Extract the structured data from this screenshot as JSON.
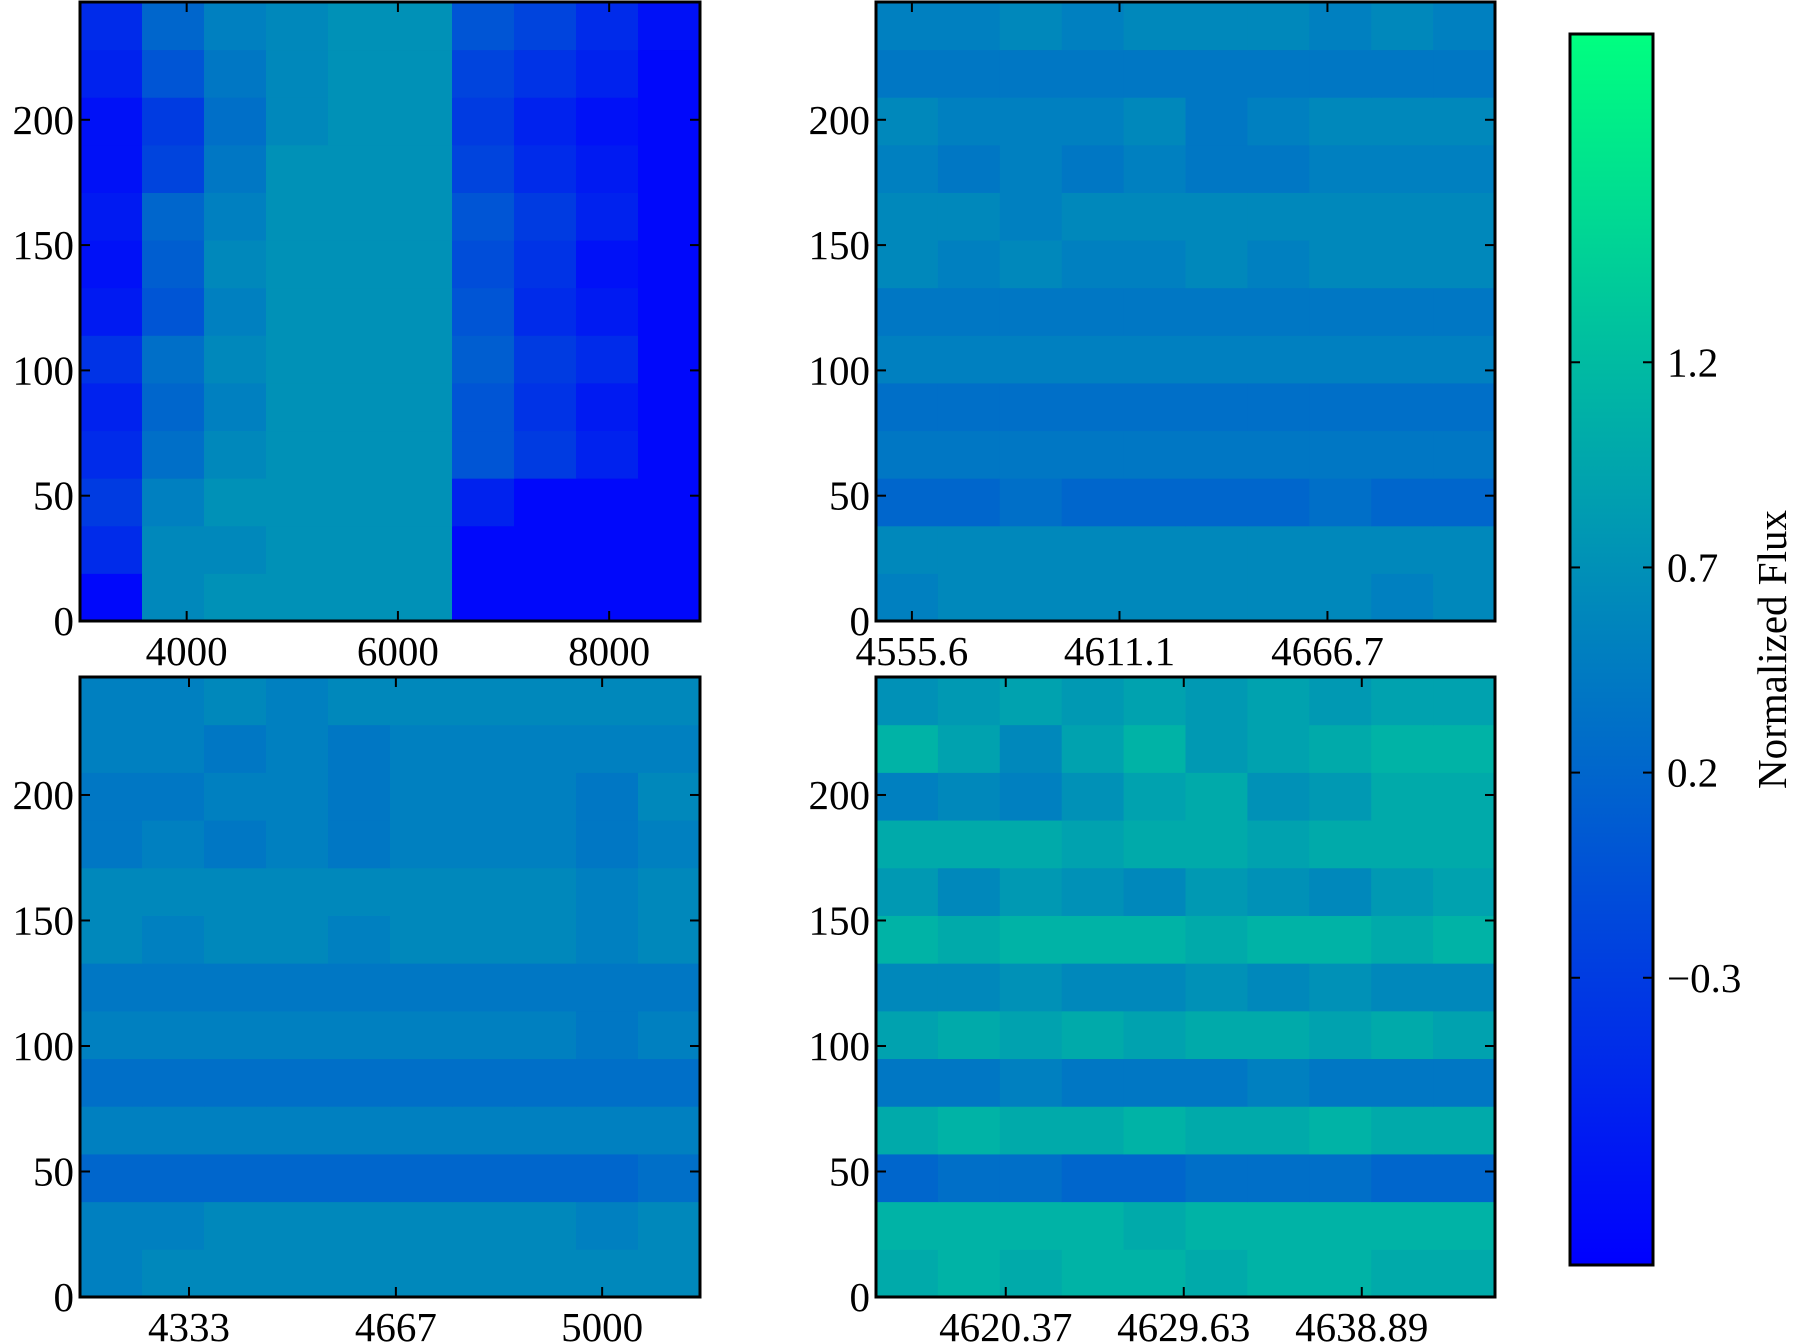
{
  "chart_data": [
    {
      "type": "heatmap",
      "xlim": [
        2990,
        8860
      ],
      "ylim": [
        0,
        247
      ],
      "xticks": [
        4000,
        6000,
        8000
      ],
      "yticks": [
        0,
        50,
        100,
        150,
        200
      ],
      "values": [
        [
          -0.9,
          0.6,
          0.7,
          0.7,
          0.7,
          0.7,
          -0.9,
          -0.9,
          -0.9,
          -0.9
        ],
        [
          -0.5,
          0.6,
          0.6,
          0.7,
          0.7,
          0.7,
          -0.9,
          -0.9,
          -0.9,
          -0.9
        ],
        [
          -0.3,
          0.5,
          0.7,
          0.7,
          0.7,
          0.7,
          -0.6,
          -0.9,
          -0.9,
          -0.9
        ],
        [
          -0.5,
          0.3,
          0.6,
          0.7,
          0.7,
          0.7,
          0.0,
          -0.3,
          -0.6,
          -0.9
        ],
        [
          -0.6,
          0.2,
          0.5,
          0.7,
          0.7,
          0.7,
          0.0,
          -0.4,
          -0.7,
          -0.9
        ],
        [
          -0.4,
          0.3,
          0.6,
          0.7,
          0.7,
          0.7,
          0.1,
          -0.3,
          -0.5,
          -0.9
        ],
        [
          -0.7,
          0.0,
          0.5,
          0.7,
          0.7,
          0.7,
          0.0,
          -0.5,
          -0.7,
          -0.9
        ],
        [
          -0.8,
          0.1,
          0.6,
          0.7,
          0.7,
          0.7,
          -0.1,
          -0.4,
          -0.8,
          -0.9
        ],
        [
          -0.7,
          0.2,
          0.5,
          0.7,
          0.7,
          0.7,
          0.0,
          -0.3,
          -0.6,
          -0.9
        ],
        [
          -0.8,
          -0.2,
          0.4,
          0.7,
          0.7,
          0.7,
          -0.2,
          -0.5,
          -0.7,
          -0.9
        ],
        [
          -0.8,
          -0.3,
          0.3,
          0.6,
          0.7,
          0.7,
          -0.3,
          -0.6,
          -0.8,
          -0.9
        ],
        [
          -0.6,
          0.0,
          0.4,
          0.6,
          0.7,
          0.7,
          -0.2,
          -0.4,
          -0.6,
          -0.9
        ],
        [
          -0.5,
          0.2,
          0.5,
          0.6,
          0.7,
          0.7,
          0.0,
          -0.2,
          -0.5,
          -0.8
        ]
      ]
    },
    {
      "type": "heatmap",
      "xlim": [
        4546,
        4711.5
      ],
      "ylim": [
        0,
        247
      ],
      "xticks": [
        4555.6,
        4611.1,
        4666.7
      ],
      "yticks": [
        0,
        50,
        100,
        150,
        200
      ],
      "values": [
        [
          0.5,
          0.6,
          0.6,
          0.6,
          0.6,
          0.6,
          0.6,
          0.6,
          0.5,
          0.6
        ],
        [
          0.6,
          0.6,
          0.6,
          0.6,
          0.6,
          0.6,
          0.6,
          0.6,
          0.6,
          0.6
        ],
        [
          0.2,
          0.2,
          0.3,
          0.2,
          0.2,
          0.2,
          0.2,
          0.3,
          0.2,
          0.2
        ],
        [
          0.4,
          0.4,
          0.4,
          0.4,
          0.4,
          0.4,
          0.4,
          0.4,
          0.4,
          0.4
        ],
        [
          0.3,
          0.3,
          0.3,
          0.3,
          0.3,
          0.3,
          0.3,
          0.3,
          0.3,
          0.3
        ],
        [
          0.5,
          0.5,
          0.5,
          0.5,
          0.5,
          0.5,
          0.5,
          0.5,
          0.5,
          0.5
        ],
        [
          0.4,
          0.4,
          0.4,
          0.4,
          0.4,
          0.4,
          0.4,
          0.4,
          0.4,
          0.4
        ],
        [
          0.6,
          0.5,
          0.6,
          0.5,
          0.5,
          0.6,
          0.5,
          0.6,
          0.6,
          0.6
        ],
        [
          0.6,
          0.6,
          0.5,
          0.6,
          0.6,
          0.6,
          0.6,
          0.6,
          0.6,
          0.6
        ],
        [
          0.5,
          0.4,
          0.5,
          0.4,
          0.5,
          0.4,
          0.4,
          0.5,
          0.5,
          0.5
        ],
        [
          0.6,
          0.5,
          0.5,
          0.5,
          0.6,
          0.4,
          0.5,
          0.6,
          0.6,
          0.6
        ],
        [
          0.4,
          0.4,
          0.4,
          0.4,
          0.4,
          0.4,
          0.4,
          0.4,
          0.4,
          0.4
        ],
        [
          0.5,
          0.5,
          0.6,
          0.5,
          0.6,
          0.6,
          0.6,
          0.5,
          0.6,
          0.5
        ]
      ]
    },
    {
      "type": "heatmap",
      "xlim": [
        4157,
        5158
      ],
      "ylim": [
        0,
        247
      ],
      "xticks": [
        4333,
        4667,
        5000
      ],
      "yticks": [
        0,
        50,
        100,
        150,
        200
      ],
      "values": [
        [
          0.5,
          0.6,
          0.6,
          0.6,
          0.6,
          0.6,
          0.6,
          0.6,
          0.6,
          0.6
        ],
        [
          0.5,
          0.5,
          0.6,
          0.6,
          0.6,
          0.6,
          0.6,
          0.6,
          0.5,
          0.6
        ],
        [
          0.2,
          0.2,
          0.2,
          0.2,
          0.2,
          0.2,
          0.2,
          0.2,
          0.2,
          0.3
        ],
        [
          0.5,
          0.5,
          0.5,
          0.5,
          0.5,
          0.5,
          0.5,
          0.5,
          0.5,
          0.5
        ],
        [
          0.3,
          0.3,
          0.3,
          0.3,
          0.3,
          0.3,
          0.3,
          0.3,
          0.3,
          0.3
        ],
        [
          0.5,
          0.5,
          0.5,
          0.5,
          0.5,
          0.5,
          0.5,
          0.5,
          0.4,
          0.5
        ],
        [
          0.4,
          0.4,
          0.4,
          0.4,
          0.4,
          0.4,
          0.4,
          0.4,
          0.4,
          0.4
        ],
        [
          0.6,
          0.5,
          0.6,
          0.6,
          0.5,
          0.6,
          0.6,
          0.6,
          0.5,
          0.6
        ],
        [
          0.6,
          0.6,
          0.6,
          0.6,
          0.6,
          0.6,
          0.6,
          0.6,
          0.5,
          0.6
        ],
        [
          0.4,
          0.5,
          0.4,
          0.5,
          0.4,
          0.5,
          0.5,
          0.5,
          0.4,
          0.5
        ],
        [
          0.4,
          0.4,
          0.5,
          0.5,
          0.4,
          0.5,
          0.5,
          0.5,
          0.4,
          0.6
        ],
        [
          0.5,
          0.5,
          0.4,
          0.5,
          0.4,
          0.5,
          0.5,
          0.5,
          0.5,
          0.5
        ],
        [
          0.5,
          0.5,
          0.6,
          0.5,
          0.6,
          0.6,
          0.6,
          0.6,
          0.6,
          0.6
        ]
      ]
    },
    {
      "type": "heatmap",
      "xlim": [
        4613.62,
        4645.82
      ],
      "ylim": [
        0,
        247
      ],
      "xticks": [
        4620.37,
        4629.63,
        4638.89
      ],
      "yticks": [
        0,
        50,
        100,
        150,
        200
      ],
      "values": [
        [
          1.0,
          1.1,
          1.0,
          1.1,
          1.1,
          1.0,
          1.1,
          1.1,
          1.0,
          1.0
        ],
        [
          1.1,
          1.1,
          1.1,
          1.1,
          1.0,
          1.1,
          1.1,
          1.1,
          1.1,
          1.1
        ],
        [
          0.2,
          0.3,
          0.3,
          0.2,
          0.2,
          0.3,
          0.3,
          0.3,
          0.2,
          0.2
        ],
        [
          1.0,
          1.1,
          1.0,
          1.0,
          1.1,
          1.0,
          1.0,
          1.1,
          1.0,
          1.0
        ],
        [
          0.4,
          0.4,
          0.5,
          0.4,
          0.4,
          0.4,
          0.5,
          0.4,
          0.4,
          0.4
        ],
        [
          0.9,
          1.0,
          0.9,
          1.0,
          0.9,
          1.0,
          1.0,
          0.9,
          1.0,
          0.9
        ],
        [
          0.6,
          0.6,
          0.7,
          0.6,
          0.6,
          0.7,
          0.6,
          0.7,
          0.6,
          0.6
        ],
        [
          1.1,
          1.0,
          1.1,
          1.1,
          1.1,
          1.0,
          1.1,
          1.1,
          1.0,
          1.1
        ],
        [
          0.8,
          0.6,
          0.8,
          0.7,
          0.6,
          0.8,
          0.7,
          0.6,
          0.8,
          0.9
        ],
        [
          1.0,
          1.0,
          1.0,
          0.9,
          1.0,
          1.0,
          0.9,
          1.0,
          1.0,
          1.0
        ],
        [
          0.5,
          0.6,
          0.5,
          0.7,
          0.9,
          1.0,
          0.7,
          0.8,
          1.0,
          1.0
        ],
        [
          1.1,
          0.9,
          0.6,
          0.9,
          1.1,
          0.8,
          0.9,
          1.0,
          1.1,
          1.1
        ],
        [
          0.7,
          0.8,
          0.9,
          0.8,
          0.9,
          0.8,
          0.9,
          0.8,
          0.9,
          0.9
        ]
      ]
    },
    {
      "type": "colorbar",
      "label": "Normalized Flux",
      "lim": [
        -1,
        2
      ],
      "cmap": [
        "#0000ff",
        "#00ff80"
      ],
      "ticks": [
        {
          "value": -0.3,
          "label": "−0.3"
        },
        0.2,
        0.7,
        1.2
      ]
    }
  ]
}
